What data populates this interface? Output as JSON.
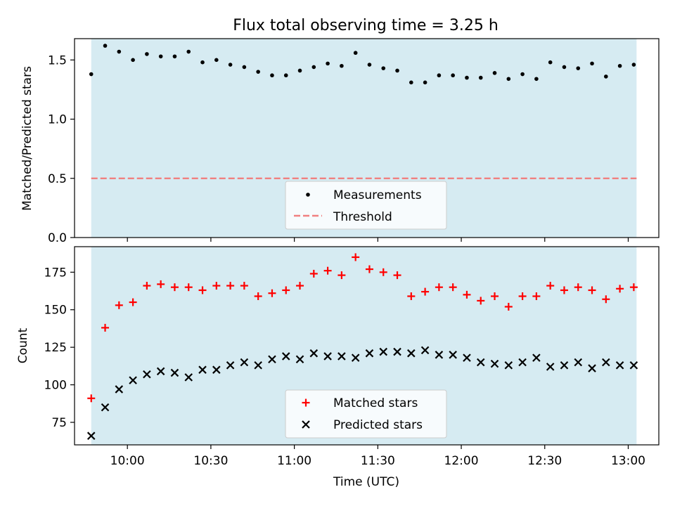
{
  "title": "Flux total observing time = 3.25 h",
  "colors": {
    "shade": "#add8e6",
    "threshold": "#f08080",
    "matched": "#ff0000",
    "predicted": "#000000",
    "measurement": "#000000"
  },
  "chart_data": [
    {
      "type": "scatter",
      "ylabel": "Matched/Predicted stars",
      "ylim": [
        0,
        1.68
      ],
      "yticks": [
        0,
        0.5,
        1,
        1.5
      ],
      "ytick_labels": [
        "0.0",
        "0.5",
        "1.0",
        "1.5"
      ],
      "xlim": [
        "09:41",
        "13:11"
      ],
      "observing_window": [
        "09:47",
        "13:03"
      ],
      "threshold": 0.5,
      "legend_position": "lower center",
      "series": [
        {
          "name": "Measurements",
          "marker": "dot",
          "x": [
            "09:47",
            "09:52",
            "09:57",
            "10:02",
            "10:07",
            "10:12",
            "10:17",
            "10:22",
            "10:27",
            "10:32",
            "10:37",
            "10:42",
            "10:47",
            "10:52",
            "10:57",
            "11:02",
            "11:07",
            "11:12",
            "11:17",
            "11:22",
            "11:27",
            "11:32",
            "11:37",
            "11:42",
            "11:47",
            "11:52",
            "11:57",
            "12:02",
            "12:07",
            "12:12",
            "12:17",
            "12:22",
            "12:27",
            "12:32",
            "12:37",
            "12:42",
            "12:47",
            "12:52",
            "12:57",
            "13:02"
          ],
          "values": [
            1.38,
            1.62,
            1.57,
            1.5,
            1.55,
            1.53,
            1.53,
            1.57,
            1.48,
            1.5,
            1.46,
            1.44,
            1.4,
            1.37,
            1.37,
            1.41,
            1.44,
            1.47,
            1.45,
            1.56,
            1.46,
            1.43,
            1.41,
            1.31,
            1.31,
            1.37,
            1.37,
            1.35,
            1.35,
            1.39,
            1.34,
            1.38,
            1.34,
            1.48,
            1.44,
            1.43,
            1.47,
            1.36,
            1.45,
            1.46
          ]
        },
        {
          "name": "Threshold",
          "marker": "dashed-line",
          "values": [
            0.5
          ]
        }
      ]
    },
    {
      "type": "scatter",
      "xlabel": "Time (UTC)",
      "ylabel": "Count",
      "ylim": [
        60,
        192
      ],
      "yticks": [
        75,
        100,
        125,
        150,
        175
      ],
      "xlim": [
        "09:41",
        "13:11"
      ],
      "xtick_labels": [
        "10:00",
        "10:30",
        "11:00",
        "11:30",
        "12:00",
        "12:30",
        "13:00"
      ],
      "observing_window": [
        "09:47",
        "13:03"
      ],
      "legend_position": "lower center",
      "series": [
        {
          "name": "Matched stars",
          "marker": "plus",
          "x": [
            "09:47",
            "09:52",
            "09:57",
            "10:02",
            "10:07",
            "10:12",
            "10:17",
            "10:22",
            "10:27",
            "10:32",
            "10:37",
            "10:42",
            "10:47",
            "10:52",
            "10:57",
            "11:02",
            "11:07",
            "11:12",
            "11:17",
            "11:22",
            "11:27",
            "11:32",
            "11:37",
            "11:42",
            "11:47",
            "11:52",
            "11:57",
            "12:02",
            "12:07",
            "12:12",
            "12:17",
            "12:22",
            "12:27",
            "12:32",
            "12:37",
            "12:42",
            "12:47",
            "12:52",
            "12:57",
            "13:02"
          ],
          "values": [
            91,
            138,
            153,
            155,
            166,
            167,
            165,
            165,
            163,
            166,
            166,
            166,
            159,
            161,
            163,
            166,
            174,
            176,
            173,
            185,
            177,
            175,
            173,
            159,
            162,
            165,
            165,
            160,
            156,
            159,
            152,
            159,
            159,
            166,
            163,
            165,
            163,
            157,
            164,
            165
          ]
        },
        {
          "name": "Predicted stars",
          "marker": "x",
          "x": [
            "09:47",
            "09:52",
            "09:57",
            "10:02",
            "10:07",
            "10:12",
            "10:17",
            "10:22",
            "10:27",
            "10:32",
            "10:37",
            "10:42",
            "10:47",
            "10:52",
            "10:57",
            "11:02",
            "11:07",
            "11:12",
            "11:17",
            "11:22",
            "11:27",
            "11:32",
            "11:37",
            "11:42",
            "11:47",
            "11:52",
            "11:57",
            "12:02",
            "12:07",
            "12:12",
            "12:17",
            "12:22",
            "12:27",
            "12:32",
            "12:37",
            "12:42",
            "12:47",
            "12:52",
            "12:57",
            "13:02"
          ],
          "values": [
            66,
            85,
            97,
            103,
            107,
            109,
            108,
            105,
            110,
            110,
            113,
            115,
            113,
            117,
            119,
            117,
            121,
            119,
            119,
            118,
            121,
            122,
            122,
            121,
            123,
            120,
            120,
            118,
            115,
            114,
            113,
            115,
            118,
            112,
            113,
            115,
            111,
            115,
            113,
            113
          ]
        }
      ]
    }
  ]
}
